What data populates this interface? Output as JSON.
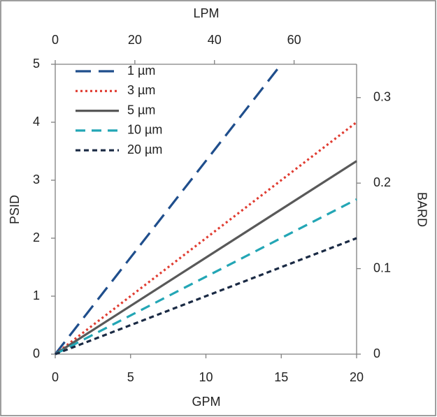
{
  "chart_data": {
    "type": "line",
    "xlabel": "GPM",
    "ylabel": "PSID",
    "x2label": "LPM",
    "y2label": "BARD",
    "xlim": [
      0,
      20
    ],
    "xticks": [
      0,
      5,
      10,
      15,
      20
    ],
    "ylim": [
      0,
      5
    ],
    "yticks": [
      0,
      1,
      2,
      3,
      4,
      5
    ],
    "x2lim": [
      0,
      75.7
    ],
    "x2ticks": [
      0,
      20,
      40,
      60
    ],
    "y2lim": [
      0,
      0.339
    ],
    "y2ticks": [
      0,
      0.1,
      0.2,
      0.3
    ],
    "grid": false,
    "legend": "upper left",
    "series": [
      {
        "name": "1 µm",
        "color": "#1f4e8c",
        "dash": "22 11",
        "x": [
          0,
          15
        ],
        "values": [
          0,
          5
        ]
      },
      {
        "name": "3 µm",
        "color": "#e03c31",
        "dash": "3 4",
        "x": [
          0,
          20
        ],
        "values": [
          0,
          4
        ]
      },
      {
        "name": "5 µm",
        "color": "#595959",
        "dash": "none",
        "x": [
          0,
          20
        ],
        "values": [
          0,
          3.33
        ]
      },
      {
        "name": "10 µm",
        "color": "#23a6b5",
        "dash": "14 9",
        "x": [
          0,
          20
        ],
        "values": [
          0,
          2.67
        ]
      },
      {
        "name": "20 µm",
        "color": "#1a2a44",
        "dash": "7 5",
        "x": [
          0,
          20
        ],
        "values": [
          0,
          2
        ]
      }
    ]
  }
}
